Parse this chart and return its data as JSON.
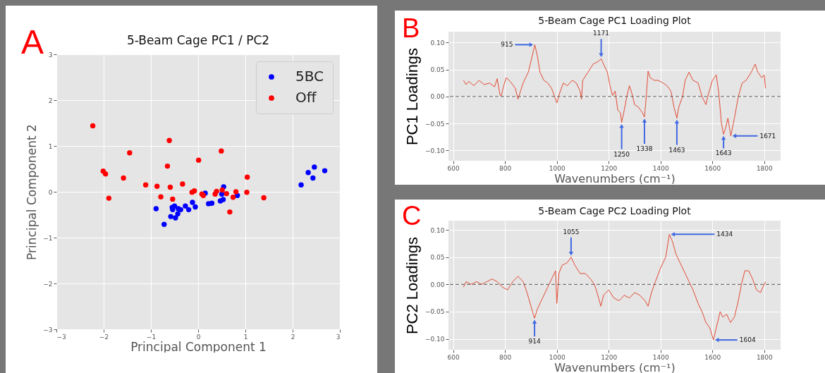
{
  "chart_data": [
    {
      "type": "scatter",
      "title": "5-Beam Cage PC1 / PC2",
      "xlabel": "Principal Component 1",
      "ylabel": "Principal Component 2",
      "xlim": [
        -3,
        3
      ],
      "ylim": [
        -3,
        3
      ],
      "xticks": [
        {
          "value": -3,
          "label": "−3"
        },
        {
          "value": -2,
          "label": "−2"
        },
        {
          "value": -1,
          "label": "−1"
        },
        0,
        1,
        2,
        3
      ],
      "yticks": [
        {
          "value": -3,
          "label": "−3"
        },
        {
          "value": -2,
          "label": "−2"
        },
        {
          "value": -1,
          "label": "−1"
        },
        0,
        1,
        2,
        3
      ],
      "grid": true,
      "legend": "top right",
      "marker": "circle",
      "annotations": [
        "A"
      ],
      "series": [
        {
          "name": "5BC",
          "color": "#0000ff",
          "x": [
            -0.89,
            -0.72,
            -0.58,
            -0.48,
            -0.55,
            -0.54,
            -0.5,
            -0.42,
            -0.37,
            -0.43,
            -0.27,
            -0.2,
            -0.12,
            -0.06,
            0.15,
            0.22,
            0.29,
            0.47,
            0.53,
            0.5,
            0.54,
            0.83,
            2.18,
            2.33,
            2.46,
            2.43,
            2.68
          ],
          "values": [
            -0.37,
            -0.71,
            -0.54,
            -0.57,
            -0.34,
            -0.39,
            -0.31,
            -0.37,
            -0.39,
            -0.48,
            -0.31,
            -0.39,
            -0.23,
            -0.33,
            -0.03,
            -0.26,
            -0.25,
            -0.2,
            -0.17,
            -0.05,
            0.11,
            -0.08,
            0.15,
            0.42,
            0.54,
            0.3,
            0.46
          ]
        },
        {
          "name": "Off",
          "color": "#ff0000",
          "x": [
            -2.23,
            -2.01,
            -1.96,
            -1.89,
            -1.58,
            -1.45,
            -1.11,
            -0.87,
            -0.79,
            -0.65,
            -0.61,
            -0.59,
            -0.54,
            -0.33,
            -0.13,
            -0.08,
            0.01,
            0.08,
            0.11,
            0.36,
            0.39,
            0.49,
            0.51,
            0.6,
            0.67,
            0.74,
            0.8,
            1.03,
            1.04,
            1.39
          ],
          "values": [
            1.44,
            0.45,
            0.39,
            -0.14,
            0.3,
            0.85,
            0.15,
            0.12,
            -0.11,
            0.56,
            1.12,
            0.1,
            -0.16,
            0.17,
            -0.01,
            0.02,
            0.69,
            -0.05,
            -0.08,
            -0.05,
            0.01,
            0.89,
            0.04,
            -0.04,
            -0.44,
            -0.12,
            0,
            -0.01,
            0.32,
            -0.13
          ]
        }
      ]
    },
    {
      "type": "line",
      "title": "5-Beam Cage PC1 Loading Plot",
      "xlabel": "Wavenumbers (cm⁻¹)",
      "ylabel": "PC1 Loadings",
      "xlim": [
        582,
        1863
      ],
      "ylim": [
        -0.119,
        0.12
      ],
      "xticks": [
        600,
        800,
        1000,
        1200,
        1400,
        1600,
        1800
      ],
      "yticks": [
        {
          "value": -0.1,
          "label": "−0.10"
        },
        {
          "value": -0.05,
          "label": "−0.05"
        },
        {
          "value": 0,
          "label": "0.00"
        },
        {
          "value": 0.05,
          "label": "0.05"
        },
        {
          "value": 0.1,
          "label": "0.10"
        }
      ],
      "grid": true,
      "x": [
        640,
        650,
        660,
        680,
        700,
        720,
        740,
        760,
        770,
        780,
        785,
        795,
        805,
        820,
        840,
        850,
        860,
        870,
        880,
        890,
        900,
        910,
        915,
        925,
        935,
        950,
        965,
        980,
        995,
        1000,
        1010,
        1025,
        1040,
        1060,
        1075,
        1090,
        1095,
        1100,
        1120,
        1140,
        1160,
        1171,
        1180,
        1195,
        1205,
        1215,
        1225,
        1235,
        1245,
        1250,
        1258,
        1270,
        1280,
        1290,
        1300,
        1315,
        1330,
        1338,
        1345,
        1352,
        1360,
        1375,
        1390,
        1410,
        1425,
        1440,
        1452,
        1463,
        1470,
        1485,
        1495,
        1510,
        1525,
        1545,
        1560,
        1575,
        1585,
        1600,
        1615,
        1625,
        1635,
        1643,
        1650,
        1660,
        1671,
        1685,
        1700,
        1715,
        1730,
        1750,
        1765,
        1775,
        1790,
        1800,
        1805
      ],
      "series": [
        {
          "color": "#e24a33",
          "values": [
            0.03,
            0.022,
            0.028,
            0.02,
            0.03,
            0.022,
            0.025,
            0.018,
            0.033,
            0.005,
            0,
            0.02,
            0.035,
            0.028,
            0.015,
            -0.005,
            0.01,
            0.025,
            0.035,
            0.045,
            0.065,
            0.085,
            0.096,
            0.075,
            0.045,
            0.03,
            0.025,
            0.015,
            -0.005,
            -0.012,
            0.005,
            0.025,
            0.02,
            0.03,
            0.025,
            0.01,
            -0.005,
            0.03,
            0.045,
            0.06,
            0.065,
            0.07,
            0.06,
            0.045,
            0.02,
            0.002,
            0.01,
            -0.025,
            -0.03,
            -0.048,
            -0.03,
            0,
            0.02,
            0.005,
            -0.015,
            -0.02,
            -0.03,
            -0.038,
            0,
            0.047,
            0.035,
            0.03,
            0.03,
            0.025,
            0.02,
            0.01,
            -0.02,
            -0.04,
            -0.02,
            0,
            0.03,
            0.045,
            0.03,
            0.025,
            0,
            -0.015,
            0.005,
            0.03,
            0.04,
            0.005,
            -0.05,
            -0.07,
            -0.06,
            -0.04,
            -0.073,
            -0.04,
            0,
            0.025,
            0.03,
            0.045,
            0.06,
            0.045,
            0.035,
            0.04,
            0.015
          ]
        }
      ],
      "ref_lines": [
        {
          "axis": "y",
          "value": 0,
          "color": "#555555",
          "line_style": "dashed"
        }
      ],
      "annotations": [
        "B",
        {
          "text": "915",
          "x": 915,
          "y": 0.096
        },
        {
          "text": "1171",
          "x": 1171,
          "y": 0.07
        },
        {
          "text": "1250",
          "x": 1250,
          "y": -0.048
        },
        {
          "text": "1338",
          "x": 1338,
          "y": -0.038
        },
        {
          "text": "1463",
          "x": 1463,
          "y": -0.04
        },
        {
          "text": "1643",
          "x": 1643,
          "y": -0.07
        },
        {
          "text": "1671",
          "x": 1671,
          "y": -0.073
        }
      ]
    },
    {
      "type": "line",
      "title": "5-Beam Cage PC2 Loading Plot",
      "xlabel": "Wavenumbers (cm⁻¹)",
      "ylabel": "PC2 Loadings",
      "xlim": [
        582,
        1863
      ],
      "ylim": [
        -0.12,
        0.117
      ],
      "xticks": [
        600,
        800,
        1000,
        1200,
        1400,
        1600,
        1800
      ],
      "yticks": [
        {
          "value": -0.1,
          "label": "−0.10"
        },
        {
          "value": -0.05,
          "label": "−0.05"
        },
        {
          "value": 0,
          "label": "0.00"
        },
        {
          "value": 0.05,
          "label": "0.05"
        },
        {
          "value": 0.1,
          "label": "0.10"
        }
      ],
      "grid": true,
      "x": [
        640,
        650,
        670,
        690,
        710,
        730,
        750,
        770,
        790,
        810,
        830,
        850,
        870,
        885,
        900,
        914,
        925,
        945,
        965,
        985,
        995,
        1000,
        1008,
        1020,
        1040,
        1055,
        1070,
        1090,
        1110,
        1130,
        1145,
        1155,
        1170,
        1180,
        1200,
        1220,
        1240,
        1260,
        1280,
        1300,
        1320,
        1340,
        1352,
        1365,
        1380,
        1400,
        1420,
        1434,
        1445,
        1460,
        1475,
        1495,
        1510,
        1525,
        1545,
        1560,
        1575,
        1590,
        1604,
        1615,
        1630,
        1640,
        1655,
        1670,
        1685,
        1700,
        1712,
        1725,
        1740,
        1755,
        1770,
        1785,
        1800,
        1805
      ],
      "series": [
        {
          "color": "#e24a33",
          "values": [
            -0.005,
            0.005,
            0,
            0.005,
            0,
            0.005,
            0.01,
            0.005,
            -0.005,
            -0.01,
            0.005,
            0.015,
            0.005,
            -0.015,
            -0.04,
            -0.062,
            -0.045,
            -0.025,
            -0.005,
            0.015,
            0.025,
            -0.035,
            0.02,
            0.035,
            0.04,
            0.05,
            0.035,
            0.02,
            0.02,
            0.01,
            0,
            -0.015,
            -0.04,
            -0.02,
            -0.01,
            -0.025,
            -0.03,
            -0.02,
            -0.025,
            -0.015,
            -0.02,
            -0.03,
            -0.04,
            -0.015,
            0.005,
            0.03,
            0.05,
            0.092,
            0.08,
            0.055,
            0.04,
            0.02,
            0.005,
            -0.01,
            -0.035,
            -0.05,
            -0.07,
            -0.08,
            -0.102,
            -0.08,
            -0.05,
            -0.06,
            -0.055,
            -0.07,
            -0.06,
            -0.03,
            0,
            0.025,
            0.025,
            0.01,
            -0.01,
            -0.015,
            0,
            0.005
          ]
        }
      ],
      "ref_lines": [
        {
          "axis": "y",
          "value": 0,
          "color": "#555555",
          "line_style": "dashed"
        }
      ],
      "annotations": [
        "C",
        {
          "text": "914",
          "x": 914,
          "y": -0.062
        },
        {
          "text": "1055",
          "x": 1055,
          "y": 0.05
        },
        {
          "text": "1434",
          "x": 1434,
          "y": 0.092
        },
        {
          "text": "1604",
          "x": 1604,
          "y": -0.102
        }
      ]
    }
  ]
}
